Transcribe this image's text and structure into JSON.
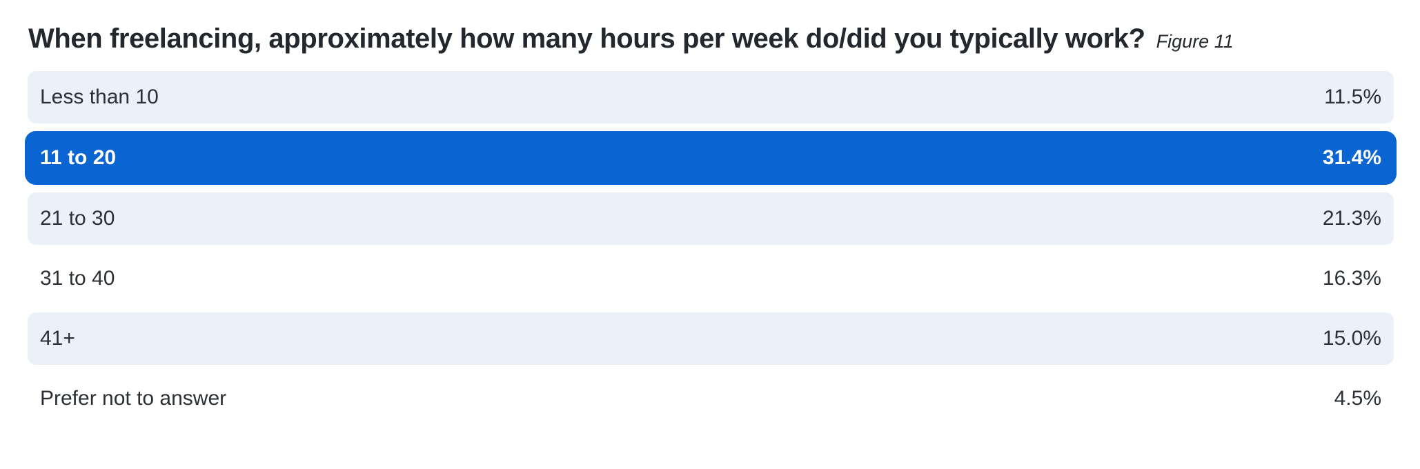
{
  "title": "When freelancing, approximately how many hours per week do/did you typically work?",
  "figure_label": "Figure 11",
  "colors": {
    "highlight_bg": "#0a64d2",
    "highlight_text": "#ffffff",
    "row_alt_bg": "#ecf1f9",
    "text": "#2b3036",
    "title_text": "#23272e",
    "page_bg": "#ffffff"
  },
  "chart_data": {
    "type": "bar",
    "title": "When freelancing, approximately how many hours per week do/did you typically work?",
    "subtitle": "Figure 11",
    "categories": [
      "Less than 10",
      "11 to 20",
      "21 to 30",
      "31 to 40",
      "41+",
      "Prefer not to answer"
    ],
    "values": [
      11.5,
      31.4,
      21.3,
      16.3,
      15.0,
      4.5
    ],
    "unit": "%",
    "highlighted_category": "11 to 20",
    "layout": "horizontal zebra-striped answer list, values right-aligned, top answer highlighted in blue",
    "xlabel": "",
    "ylabel": "",
    "legend": false,
    "grid": false
  },
  "rows": [
    {
      "label": "Less than 10",
      "value": "11.5%"
    },
    {
      "label": "11 to 20",
      "value": "31.4%"
    },
    {
      "label": "21 to 30",
      "value": "21.3%"
    },
    {
      "label": "31 to 40",
      "value": "16.3%"
    },
    {
      "label": "41+",
      "value": "15.0%"
    },
    {
      "label": "Prefer not to answer",
      "value": "4.5%"
    }
  ]
}
